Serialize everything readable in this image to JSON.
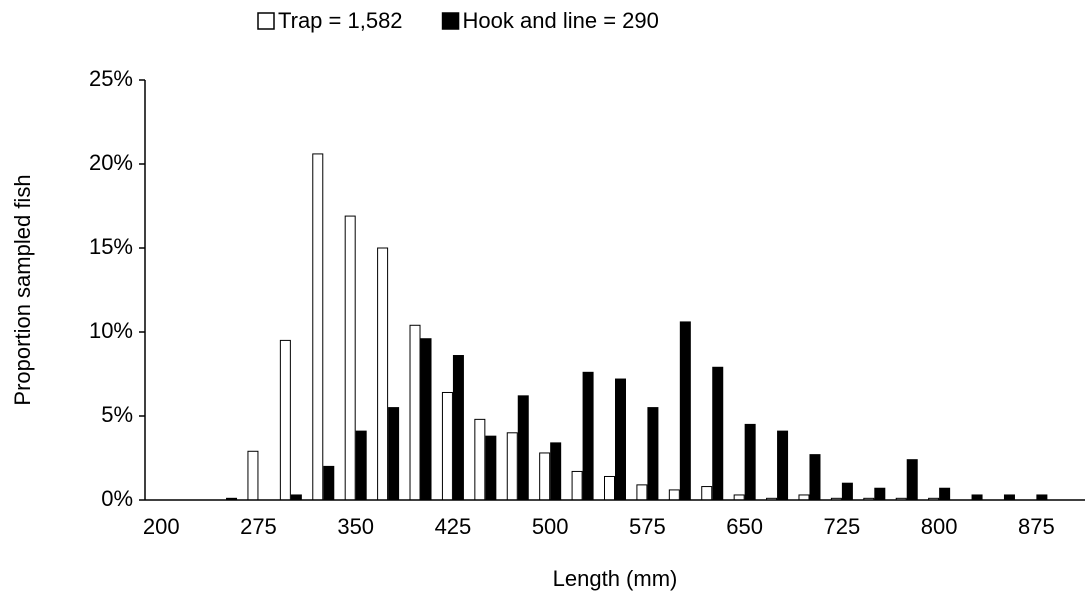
{
  "chart_data": {
    "type": "bar",
    "x_label": "Length (mm)",
    "y_label": "Proportion sampled fish",
    "categories": [
      "200",
      null,
      null,
      "275",
      null,
      null,
      "350",
      null,
      null,
      "425",
      null,
      null,
      "500",
      null,
      null,
      "575",
      null,
      null,
      "650",
      null,
      null,
      "725",
      null,
      null,
      "800",
      null,
      null,
      "875",
      null
    ],
    "series": [
      {
        "name": "Trap = 1,582",
        "color": "#ffffff",
        "values": [
          0,
          0,
          0,
          2.9,
          9.5,
          20.6,
          16.9,
          15.0,
          10.4,
          6.4,
          4.8,
          4.0,
          2.8,
          1.7,
          1.4,
          0.9,
          0.6,
          0.8,
          0.3,
          0.1,
          0.3,
          0.1,
          0.1,
          0.1,
          0.1,
          0,
          0,
          0,
          0
        ]
      },
      {
        "name": "Hook and line = 290",
        "color": "#000000",
        "values": [
          0,
          0,
          0.1,
          0,
          0.3,
          2.0,
          4.1,
          5.5,
          9.6,
          8.6,
          3.8,
          6.2,
          3.4,
          7.6,
          7.2,
          5.5,
          10.6,
          7.9,
          4.5,
          4.1,
          2.7,
          1.0,
          0.7,
          2.4,
          0.7,
          0.3,
          0.3,
          0.3,
          0
        ]
      }
    ],
    "ylim": [
      0,
      25
    ],
    "yticks": [
      {
        "value": 0,
        "label": "0%"
      },
      {
        "value": 5,
        "label": "5%"
      },
      {
        "value": 10,
        "label": "10%"
      },
      {
        "value": 15,
        "label": "15%"
      },
      {
        "value": 20,
        "label": "20%"
      },
      {
        "value": 25,
        "label": "25%"
      }
    ],
    "legend": "top"
  }
}
